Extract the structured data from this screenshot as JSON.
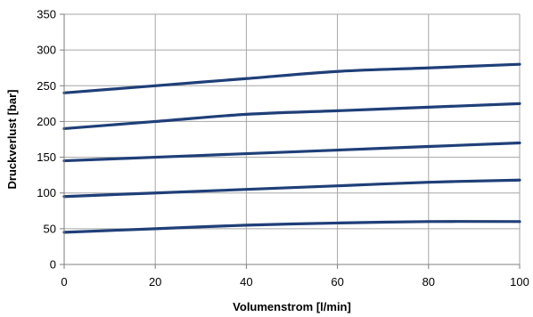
{
  "chart_data": {
    "type": "line",
    "xlabel": "Volumenstrom [l/min]",
    "ylabel": "Druckverlust [bar]",
    "xlim": [
      0,
      100
    ],
    "ylim": [
      0,
      350
    ],
    "x_ticks": [
      0,
      20,
      40,
      60,
      80,
      100
    ],
    "y_ticks": [
      0,
      50,
      100,
      150,
      200,
      250,
      300,
      350
    ],
    "grid": true,
    "legend": "none",
    "colors": {
      "line": "#1f3f78",
      "grid": "#a6a6a6",
      "axis": "#7f7f7f"
    },
    "series": [
      {
        "x": [
          0,
          20,
          40,
          60,
          80,
          100
        ],
        "values": [
          45,
          50,
          55,
          58,
          60,
          60
        ]
      },
      {
        "x": [
          0,
          20,
          40,
          60,
          80,
          100
        ],
        "values": [
          95,
          100,
          105,
          110,
          115,
          118
        ]
      },
      {
        "x": [
          0,
          20,
          40,
          60,
          80,
          100
        ],
        "values": [
          145,
          150,
          155,
          160,
          165,
          170
        ]
      },
      {
        "x": [
          0,
          20,
          40,
          60,
          80,
          100
        ],
        "values": [
          190,
          200,
          210,
          215,
          220,
          225
        ]
      },
      {
        "x": [
          0,
          20,
          40,
          60,
          80,
          100
        ],
        "values": [
          240,
          250,
          260,
          270,
          275,
          280
        ]
      }
    ]
  }
}
